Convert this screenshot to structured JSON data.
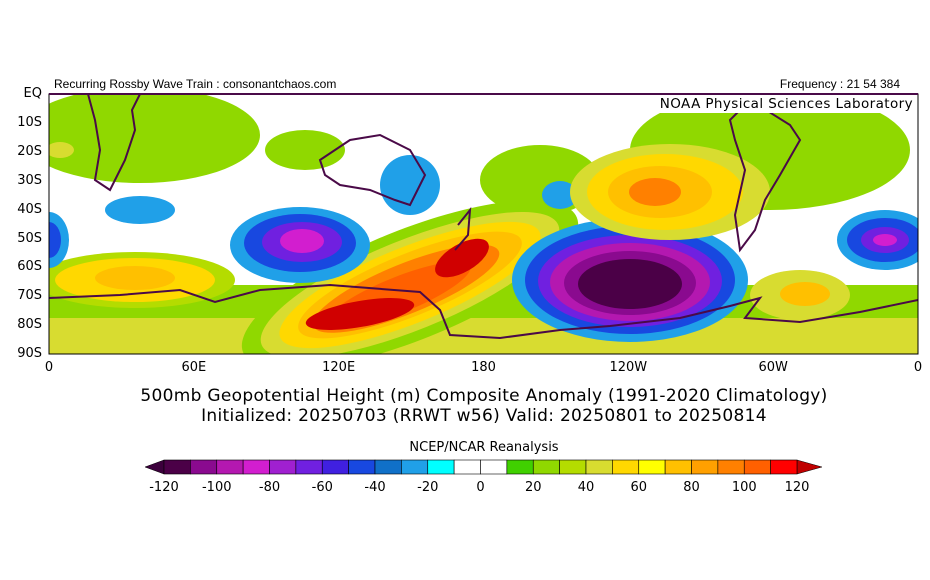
{
  "header": {
    "left_text": "Recurring Rossby Wave Train : consonantchaos.com",
    "right_text": "Frequency : 21 54 384",
    "lab_label": "NOAA Physical Sciences Laboratory"
  },
  "map": {
    "lat_labels": [
      "EQ",
      "10S",
      "20S",
      "30S",
      "40S",
      "50S",
      "60S",
      "70S",
      "80S",
      "90S"
    ],
    "lon_labels": [
      "0",
      "60E",
      "120E",
      "180",
      "120W",
      "60W",
      "0"
    ],
    "coastline_color": "#4a0a48"
  },
  "title": {
    "line1": "500mb Geopotential Height (m) Composite Anomaly (1991-2020 Climatology)",
    "line2": "Initialized: 20250703 (RRWT w56) Valid: 20250801 to 20250814"
  },
  "colorbar": {
    "title": "NCEP/NCAR Reanalysis",
    "labels": [
      "-120",
      "-100",
      "-80",
      "-60",
      "-40",
      "-20",
      "0",
      "20",
      "40",
      "60",
      "80",
      "100",
      "120"
    ],
    "low_extend_color": "#3c003c",
    "high_extend_color": "#c00000",
    "colors": [
      "#4b0047",
      "#8a0a8f",
      "#b418b0",
      "#d21ecf",
      "#a020d0",
      "#7020e0",
      "#4020e0",
      "#1848e0",
      "#1070c8",
      "#20a0e8",
      "#00ffff",
      "#ffffff",
      "#ffffff",
      "#40d000",
      "#90d800",
      "#b4dc00",
      "#d8dc30",
      "#ffd800",
      "#ffff00",
      "#ffc000",
      "#ffa000",
      "#ff8000",
      "#ff6000",
      "#ff0000"
    ]
  }
}
